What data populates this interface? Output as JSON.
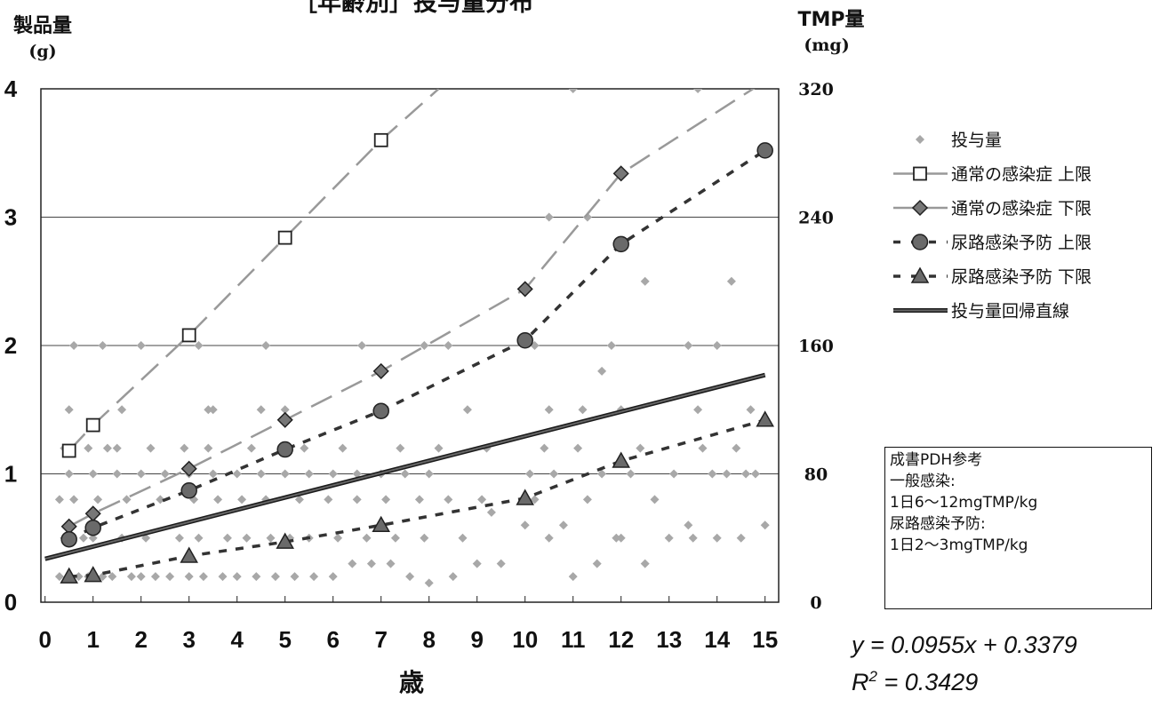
{
  "chart_data": {
    "type": "scatter",
    "title": "［年齢別］投与量分布",
    "ylabel": "製品量",
    "ylabel_unit": "(g)",
    "y2label": "TMP量",
    "y2label_unit": "(mg)",
    "xlabel": "歳",
    "xlim": [
      0,
      15
    ],
    "ylim": [
      0,
      4
    ],
    "y2lim": [
      0,
      320
    ],
    "x_ticks": [
      "0",
      "1",
      "2",
      "3",
      "4",
      "5",
      "6",
      "7",
      "8",
      "9",
      "10",
      "11",
      "12",
      "13",
      "14",
      "15"
    ],
    "y_ticks": [
      "0",
      "1",
      "2",
      "3",
      "4"
    ],
    "y2_ticks": [
      "0",
      "80",
      "160",
      "240",
      "320"
    ],
    "grid": "horizontal",
    "legend_position": "right",
    "series": [
      {
        "name": "投与量",
        "kind": "scatter",
        "color": "#a8a8a8",
        "x": [
          0.3,
          0.5,
          0.7,
          0.9,
          1.2,
          1.4,
          1.8,
          2.0,
          2.3,
          2.6,
          3.0,
          3.3,
          3.7,
          4.0,
          4.4,
          4.8,
          5.2,
          5.6,
          6.0,
          6.4,
          6.8,
          7.2,
          7.6,
          8.0,
          8.5,
          9.0,
          9.5,
          10.0,
          10.5,
          11.0,
          11.5,
          12.0,
          12.5,
          13.0,
          13.5,
          14.0,
          14.5,
          15.0,
          0.4,
          0.8,
          1.0,
          1.6,
          2.1,
          2.8,
          3.2,
          3.8,
          4.2,
          4.7,
          5.1,
          5.5,
          6.1,
          6.7,
          7.3,
          7.9,
          8.7,
          9.3,
          10.2,
          10.8,
          11.3,
          11.9,
          12.7,
          13.4,
          14.2,
          14.8,
          0.3,
          0.6,
          1.1,
          1.7,
          2.4,
          3.1,
          3.6,
          4.1,
          4.6,
          5.3,
          5.9,
          6.5,
          7.1,
          7.8,
          8.4,
          9.1,
          10.1,
          10.6,
          11.6,
          12.2,
          13.1,
          13.9,
          14.6,
          0.5,
          1.0,
          1.5,
          2.0,
          2.5,
          3.0,
          3.5,
          4.0,
          4.5,
          5.0,
          5.5,
          6.0,
          6.5,
          7.0,
          7.5,
          8.0,
          0.4,
          0.9,
          1.3,
          2.2,
          2.9,
          3.4,
          4.3,
          5.4,
          6.2,
          7.4,
          8.2,
          9.2,
          10.4,
          11.1,
          12.4,
          13.7,
          14.4,
          0.5,
          1.6,
          3.5,
          5.0,
          7.0,
          8.8,
          10.5,
          11.2,
          12.0,
          13.6,
          14.7,
          0.6,
          1.2,
          2.0,
          3.2,
          4.6,
          6.6,
          8.4,
          10.2,
          11.8,
          13.4,
          11.0,
          13.6,
          10.5,
          11.3,
          12.5,
          14.0,
          14.3,
          11.6,
          7.9,
          3.4,
          4.5,
          1.5
        ],
        "y": [
          0.2,
          0.2,
          0.2,
          0.2,
          0.2,
          0.2,
          0.2,
          0.2,
          0.2,
          0.2,
          0.2,
          0.2,
          0.2,
          0.2,
          0.2,
          0.2,
          0.2,
          0.2,
          0.2,
          0.3,
          0.3,
          0.3,
          0.2,
          0.15,
          0.2,
          0.3,
          0.3,
          0.6,
          0.5,
          0.2,
          0.3,
          0.5,
          0.3,
          0.5,
          0.5,
          0.5,
          0.5,
          0.6,
          0.5,
          0.5,
          0.5,
          0.5,
          0.5,
          0.5,
          0.5,
          0.5,
          0.5,
          0.5,
          0.5,
          0.5,
          0.5,
          0.5,
          0.5,
          0.5,
          0.5,
          0.7,
          0.8,
          0.6,
          0.8,
          0.5,
          0.8,
          0.6,
          1.0,
          1.0,
          0.8,
          0.8,
          0.8,
          0.8,
          0.8,
          0.8,
          0.8,
          0.8,
          0.8,
          0.8,
          0.8,
          0.8,
          0.8,
          0.8,
          0.8,
          0.8,
          1.0,
          1.0,
          1.0,
          1.0,
          1.0,
          1.0,
          1.0,
          1.0,
          1.0,
          1.0,
          1.0,
          1.0,
          1.0,
          1.0,
          1.0,
          1.0,
          1.0,
          1.0,
          1.0,
          1.0,
          1.0,
          1.0,
          1.0,
          1.2,
          1.2,
          1.2,
          1.2,
          1.2,
          1.2,
          1.2,
          1.2,
          1.2,
          1.2,
          1.2,
          1.2,
          1.2,
          1.2,
          1.2,
          1.2,
          1.2,
          1.5,
          1.5,
          1.5,
          1.5,
          1.5,
          1.5,
          1.5,
          1.5,
          1.5,
          1.5,
          1.5,
          2.0,
          2.0,
          2.0,
          2.0,
          2.0,
          2.0,
          2.0,
          2.0,
          2.0,
          2.0,
          4.0,
          4.0,
          3.0,
          3.0,
          2.5,
          2.0,
          2.5,
          1.8,
          2.0,
          1.5,
          1.5,
          1.2
        ]
      },
      {
        "name": "通常の感染症 上限",
        "kind": "line",
        "dash": "long",
        "marker": "square-open",
        "color": "#999999",
        "x": [
          0.5,
          1,
          3,
          5,
          7,
          8.2
        ],
        "y": [
          1.18,
          1.38,
          2.08,
          2.84,
          3.6,
          4.0
        ],
        "marker_x": [
          0.5,
          1,
          3,
          5,
          7
        ]
      },
      {
        "name": "通常の感染症 下限",
        "kind": "line",
        "dash": "long",
        "marker": "diamond",
        "color": "#999999",
        "x": [
          0.5,
          1,
          3,
          5,
          7,
          10,
          12,
          15
        ],
        "y": [
          0.59,
          0.69,
          1.04,
          1.42,
          1.8,
          2.44,
          3.34,
          4.06
        ],
        "marker_x": [
          0.5,
          1,
          3,
          5,
          7,
          10,
          12
        ]
      },
      {
        "name": "尿路感染予防 上限",
        "kind": "line",
        "dash": "short",
        "marker": "circle",
        "color": "#333333",
        "x": [
          0.5,
          1,
          3,
          5,
          7,
          10,
          12,
          15
        ],
        "y": [
          0.49,
          0.58,
          0.87,
          1.19,
          1.49,
          2.04,
          2.79,
          3.52
        ],
        "marker_x": [
          0.5,
          1,
          3,
          5,
          7,
          10,
          12,
          15
        ]
      },
      {
        "name": "尿路感染予防 下限",
        "kind": "line",
        "dash": "short",
        "marker": "triangle",
        "color": "#333333",
        "x": [
          0.5,
          1,
          3,
          5,
          7,
          10,
          12,
          15
        ],
        "y": [
          0.2,
          0.21,
          0.36,
          0.47,
          0.6,
          0.81,
          1.1,
          1.42
        ],
        "marker_x": [
          0.5,
          1,
          3,
          5,
          7,
          10,
          12,
          15
        ]
      },
      {
        "name": "投与量回帰直線",
        "kind": "regression",
        "color": "#666666",
        "x": [
          0,
          15
        ],
        "y": [
          0.3379,
          1.7704
        ]
      }
    ],
    "annotation_box": [
      "成書PDH参考",
      "一般感染:",
      "1日6～12mgTMP/kg",
      "尿路感染予防:",
      "1日2～3mgTMP/kg"
    ],
    "regression_equation": "y = 0.0955x + 0.3379",
    "r_squared": "R2 = 0.3429"
  },
  "equation": {
    "line1": "y = 0.0955x + 0.3379",
    "r_prefix": "R",
    "r_sup": "2",
    "r_value": " = 0.3429"
  },
  "note": {
    "lines": [
      "成書PDH参考",
      "一般感染:",
      "1日6～12mgTMP/kg",
      "尿路感染予防:",
      "1日2～3mgTMP/kg"
    ]
  }
}
